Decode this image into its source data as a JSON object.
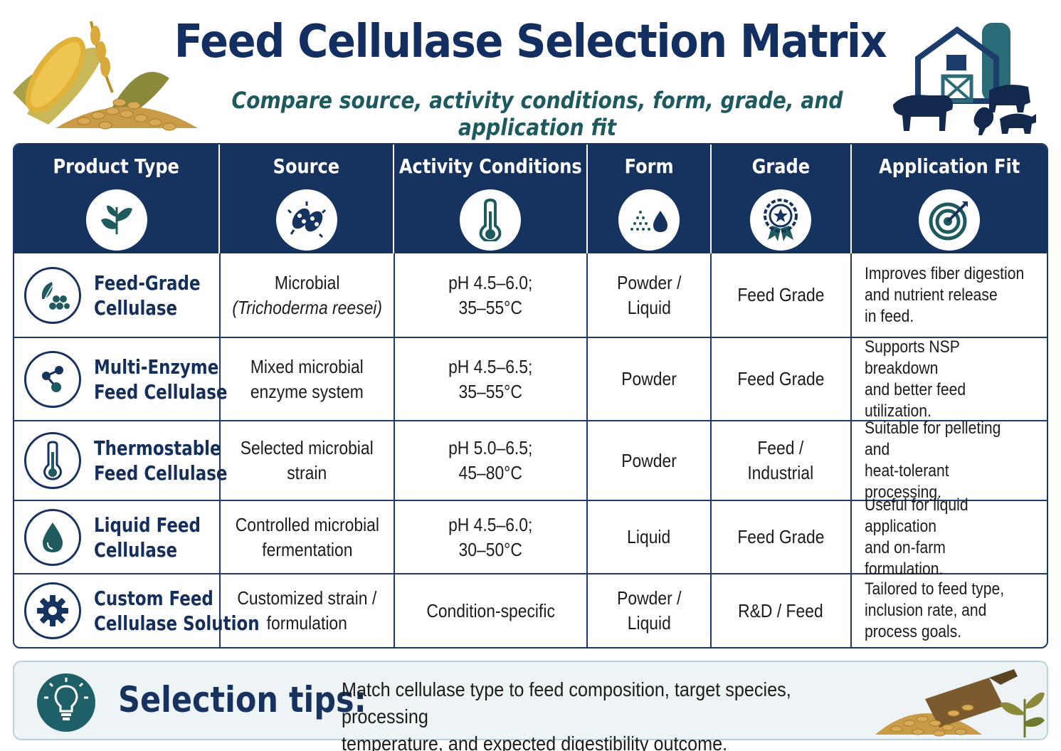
{
  "header": {
    "title": "Feed Cellulase Selection Matrix",
    "subtitle": "Compare source, activity conditions, form, grade, and application fit"
  },
  "columns": [
    {
      "label": "Product Type",
      "icon": "leaf-icon"
    },
    {
      "label": "Source",
      "icon": "microbe-icon"
    },
    {
      "label": "Activity Conditions",
      "icon": "thermometer-icon"
    },
    {
      "label": "Form",
      "icon": "powder-droplet-icon"
    },
    {
      "label": "Grade",
      "icon": "award-badge-icon"
    },
    {
      "label": "Application Fit",
      "icon": "target-icon"
    }
  ],
  "rows": [
    {
      "icon": "leaf-granules-icon",
      "product_line1": "Feed-Grade",
      "product_line2": "Cellulase",
      "source_line1": "Microbial",
      "source_line2": "(Trichoderma reesei)",
      "activity_line1": "pH 4.5–6.0;",
      "activity_line2": "35–55°C",
      "form_line1": "Powder /",
      "form_line2": "Liquid",
      "grade_line1": "Feed Grade",
      "grade_line2": "",
      "app_line1": "Improves fiber digestion",
      "app_line2": "and nutrient release",
      "app_line3": "in feed."
    },
    {
      "icon": "molecule-icon",
      "product_line1": "Multi-Enzyme",
      "product_line2": "Feed Cellulase",
      "source_line1": "Mixed microbial",
      "source_line2": "enzyme system",
      "activity_line1": "pH 4.5–6.5;",
      "activity_line2": "35–55°C",
      "form_line1": "Powder",
      "form_line2": "",
      "grade_line1": "Feed Grade",
      "grade_line2": "",
      "app_line1": "Supports NSP breakdown",
      "app_line2": "and better feed",
      "app_line3": "utilization."
    },
    {
      "icon": "thermometer-icon",
      "product_line1": "Thermostable",
      "product_line2": "Feed Cellulase",
      "source_line1": "Selected microbial",
      "source_line2": "strain",
      "activity_line1": "pH 5.0–6.5;",
      "activity_line2": "45–80°C",
      "form_line1": "Powder",
      "form_line2": "",
      "grade_line1": "Feed /",
      "grade_line2": "Industrial",
      "app_line1": "Suitable for pelleting and",
      "app_line2": "heat-tolerant processing.",
      "app_line3": ""
    },
    {
      "icon": "droplet-icon",
      "product_line1": "Liquid Feed",
      "product_line2": "Cellulase",
      "source_line1": "Controlled microbial",
      "source_line2": "fermentation",
      "activity_line1": "pH 4.5–6.0;",
      "activity_line2": "30–50°C",
      "form_line1": "Liquid",
      "form_line2": "",
      "grade_line1": "Feed Grade",
      "grade_line2": "",
      "app_line1": "Useful for liquid application",
      "app_line2": "and on-farm formulation.",
      "app_line3": ""
    },
    {
      "icon": "gear-icon",
      "product_line1": "Custom Feed",
      "product_line2": "Cellulase Solution",
      "source_line1": "Customized strain /",
      "source_line2": "formulation",
      "activity_line1": "Condition-specific",
      "activity_line2": "",
      "form_line1": "Powder /",
      "form_line2": "Liquid",
      "grade_line1": "R&D / Feed",
      "grade_line2": "",
      "app_line1": "Tailored to feed type,",
      "app_line2": "inclusion rate, and",
      "app_line3": "process goals."
    }
  ],
  "tips": {
    "label": "Selection tips:",
    "text_line1": "Match cellulase type to feed composition, target species, processing",
    "text_line2": "temperature, and expected digestibility outcome."
  },
  "colors": {
    "navy": "#16325f",
    "teal": "#1d5a60",
    "tips_bg": "#eef3f5"
  }
}
